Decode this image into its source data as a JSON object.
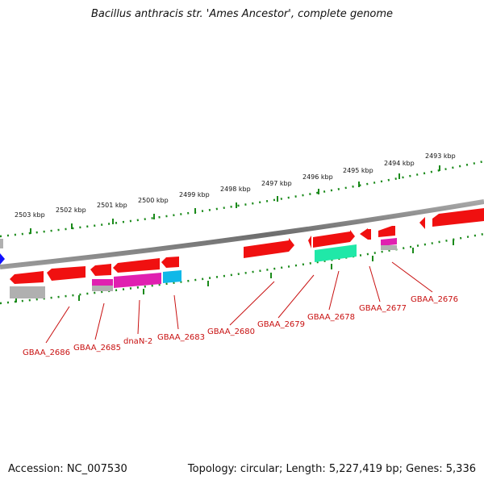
{
  "title": "Bacillus anthracis str. 'Ames Ancestor', complete genome",
  "accession": "Accession: NC_007530",
  "topology": "Topology: circular; Length: 5,227,419 bp; Genes: 5,336",
  "colors": {
    "backbone": "#808080",
    "ruler": "#1a8a1a",
    "gene_red": "#f01010",
    "gene_magenta": "#e020b0",
    "gene_cyan": "#10b8e8",
    "gene_green": "#20e8a8",
    "gene_gray": "#b0b0b0",
    "gene_blue": "#1010ff",
    "label": "#c81010"
  },
  "ruler": {
    "unit": "kbp",
    "ticks": [
      "2503 kbp",
      "2502 kbp",
      "2501 kbp",
      "2500 kbp",
      "2499 kbp",
      "2498 kbp",
      "2497 kbp",
      "2496 kbp",
      "2495 kbp",
      "2494 kbp",
      "2493 kbp"
    ]
  },
  "gene_labels": [
    "GBAA_2686",
    "GBAA_2685",
    "dnaN-2",
    "GBAA_2683",
    "GBAA_2680",
    "GBAA_2679",
    "GBAA_2678",
    "GBAA_2677",
    "GBAA_2676"
  ]
}
